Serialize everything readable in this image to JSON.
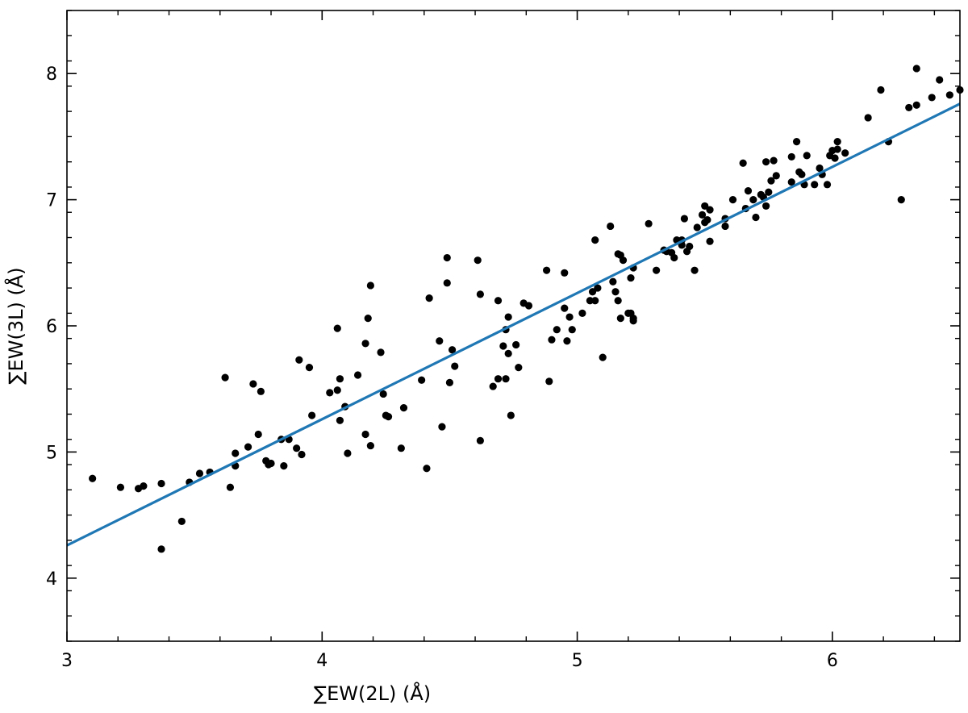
{
  "chart_data": {
    "type": "scatter",
    "xlabel": "∑EW(2L)  (Å)",
    "ylabel": "∑EW(3L)  (Å)",
    "xlim": [
      3.0,
      6.5
    ],
    "ylim": [
      3.5,
      8.5
    ],
    "x_ticks": [
      3,
      4,
      5,
      6
    ],
    "y_ticks": [
      4,
      5,
      6,
      7,
      8
    ],
    "x_minor_step": 0.2,
    "y_minor_step": 0.2,
    "grid": false,
    "colors": {
      "points": "#000000",
      "fit_line": "#1f77b4",
      "axes": "#000000"
    },
    "fit_line": {
      "x": [
        3.0,
        6.5
      ],
      "y": [
        4.26,
        7.76
      ]
    },
    "points": [
      [
        3.1,
        4.79
      ],
      [
        3.21,
        4.72
      ],
      [
        3.28,
        4.71
      ],
      [
        3.3,
        4.73
      ],
      [
        3.37,
        4.75
      ],
      [
        3.37,
        4.23
      ],
      [
        3.45,
        4.45
      ],
      [
        3.48,
        4.76
      ],
      [
        3.52,
        4.83
      ],
      [
        3.56,
        4.84
      ],
      [
        3.62,
        5.59
      ],
      [
        3.64,
        4.72
      ],
      [
        3.66,
        4.99
      ],
      [
        3.66,
        4.89
      ],
      [
        3.71,
        5.04
      ],
      [
        3.73,
        5.54
      ],
      [
        3.75,
        5.14
      ],
      [
        3.76,
        5.48
      ],
      [
        3.78,
        4.93
      ],
      [
        3.79,
        4.9
      ],
      [
        3.8,
        4.91
      ],
      [
        3.84,
        5.1
      ],
      [
        3.85,
        4.89
      ],
      [
        3.87,
        5.1
      ],
      [
        3.9,
        5.03
      ],
      [
        3.91,
        5.73
      ],
      [
        3.92,
        4.98
      ],
      [
        3.95,
        5.67
      ],
      [
        3.96,
        5.29
      ],
      [
        4.03,
        5.47
      ],
      [
        4.06,
        5.49
      ],
      [
        4.06,
        5.98
      ],
      [
        4.07,
        5.58
      ],
      [
        4.07,
        5.25
      ],
      [
        4.09,
        5.36
      ],
      [
        4.1,
        4.99
      ],
      [
        4.14,
        5.61
      ],
      [
        4.17,
        5.14
      ],
      [
        4.17,
        5.86
      ],
      [
        4.18,
        6.06
      ],
      [
        4.19,
        6.32
      ],
      [
        4.19,
        5.05
      ],
      [
        4.23,
        5.79
      ],
      [
        4.24,
        5.46
      ],
      [
        4.25,
        5.29
      ],
      [
        4.26,
        5.28
      ],
      [
        4.31,
        5.03
      ],
      [
        4.32,
        5.35
      ],
      [
        4.39,
        5.57
      ],
      [
        4.41,
        4.87
      ],
      [
        4.42,
        6.22
      ],
      [
        4.46,
        5.88
      ],
      [
        4.47,
        5.2
      ],
      [
        4.49,
        6.34
      ],
      [
        4.49,
        6.54
      ],
      [
        4.5,
        5.55
      ],
      [
        4.51,
        5.81
      ],
      [
        4.52,
        5.68
      ],
      [
        4.61,
        6.52
      ],
      [
        4.62,
        6.25
      ],
      [
        4.62,
        5.09
      ],
      [
        4.67,
        5.52
      ],
      [
        4.69,
        6.2
      ],
      [
        4.69,
        5.58
      ],
      [
        4.71,
        5.84
      ],
      [
        4.72,
        5.58
      ],
      [
        4.72,
        5.97
      ],
      [
        4.73,
        6.07
      ],
      [
        4.73,
        5.78
      ],
      [
        4.74,
        5.29
      ],
      [
        4.76,
        5.85
      ],
      [
        4.77,
        5.67
      ],
      [
        4.79,
        6.18
      ],
      [
        4.81,
        6.16
      ],
      [
        4.88,
        6.44
      ],
      [
        4.89,
        5.56
      ],
      [
        4.9,
        5.89
      ],
      [
        4.92,
        5.97
      ],
      [
        4.95,
        6.42
      ],
      [
        4.95,
        6.14
      ],
      [
        4.96,
        5.88
      ],
      [
        4.97,
        6.07
      ],
      [
        4.98,
        5.97
      ],
      [
        5.02,
        6.1
      ],
      [
        5.05,
        6.2
      ],
      [
        5.06,
        6.27
      ],
      [
        5.07,
        6.68
      ],
      [
        5.07,
        6.2
      ],
      [
        5.08,
        6.3
      ],
      [
        5.1,
        5.75
      ],
      [
        5.13,
        6.79
      ],
      [
        5.14,
        6.35
      ],
      [
        5.15,
        6.27
      ],
      [
        5.16,
        6.57
      ],
      [
        5.16,
        6.2
      ],
      [
        5.17,
        6.56
      ],
      [
        5.17,
        6.06
      ],
      [
        5.18,
        6.52
      ],
      [
        5.2,
        6.1
      ],
      [
        5.21,
        6.1
      ],
      [
        5.21,
        6.38
      ],
      [
        5.22,
        6.06
      ],
      [
        5.22,
        6.46
      ],
      [
        5.22,
        6.04
      ],
      [
        5.28,
        6.81
      ],
      [
        5.31,
        6.44
      ],
      [
        5.34,
        6.6
      ],
      [
        5.35,
        6.59
      ],
      [
        5.37,
        6.58
      ],
      [
        5.38,
        6.54
      ],
      [
        5.39,
        6.68
      ],
      [
        5.41,
        6.68
      ],
      [
        5.41,
        6.64
      ],
      [
        5.42,
        6.85
      ],
      [
        5.43,
        6.59
      ],
      [
        5.44,
        6.63
      ],
      [
        5.46,
        6.44
      ],
      [
        5.47,
        6.78
      ],
      [
        5.49,
        6.88
      ],
      [
        5.5,
        6.95
      ],
      [
        5.5,
        6.82
      ],
      [
        5.51,
        6.84
      ],
      [
        5.52,
        6.92
      ],
      [
        5.52,
        6.67
      ],
      [
        5.58,
        6.85
      ],
      [
        5.58,
        6.79
      ],
      [
        5.61,
        7.0
      ],
      [
        5.65,
        7.29
      ],
      [
        5.66,
        6.93
      ],
      [
        5.67,
        7.07
      ],
      [
        5.69,
        7.0
      ],
      [
        5.7,
        6.86
      ],
      [
        5.72,
        7.04
      ],
      [
        5.73,
        7.02
      ],
      [
        5.74,
        7.3
      ],
      [
        5.74,
        6.95
      ],
      [
        5.75,
        7.06
      ],
      [
        5.76,
        7.15
      ],
      [
        5.77,
        7.31
      ],
      [
        5.78,
        7.19
      ],
      [
        5.84,
        7.34
      ],
      [
        5.84,
        7.14
      ],
      [
        5.86,
        7.46
      ],
      [
        5.87,
        7.22
      ],
      [
        5.88,
        7.2
      ],
      [
        5.89,
        7.12
      ],
      [
        5.9,
        7.35
      ],
      [
        5.93,
        7.12
      ],
      [
        5.95,
        7.25
      ],
      [
        5.96,
        7.2
      ],
      [
        5.98,
        7.12
      ],
      [
        5.99,
        7.35
      ],
      [
        6.0,
        7.39
      ],
      [
        6.01,
        7.33
      ],
      [
        6.02,
        7.46
      ],
      [
        6.02,
        7.4
      ],
      [
        6.05,
        7.37
      ],
      [
        6.14,
        7.65
      ],
      [
        6.19,
        7.87
      ],
      [
        6.22,
        7.46
      ],
      [
        6.27,
        7.0
      ],
      [
        6.3,
        7.73
      ],
      [
        6.33,
        8.04
      ],
      [
        6.33,
        7.75
      ],
      [
        6.39,
        7.81
      ],
      [
        6.42,
        7.95
      ],
      [
        6.46,
        7.83
      ],
      [
        6.5,
        7.87
      ]
    ]
  }
}
